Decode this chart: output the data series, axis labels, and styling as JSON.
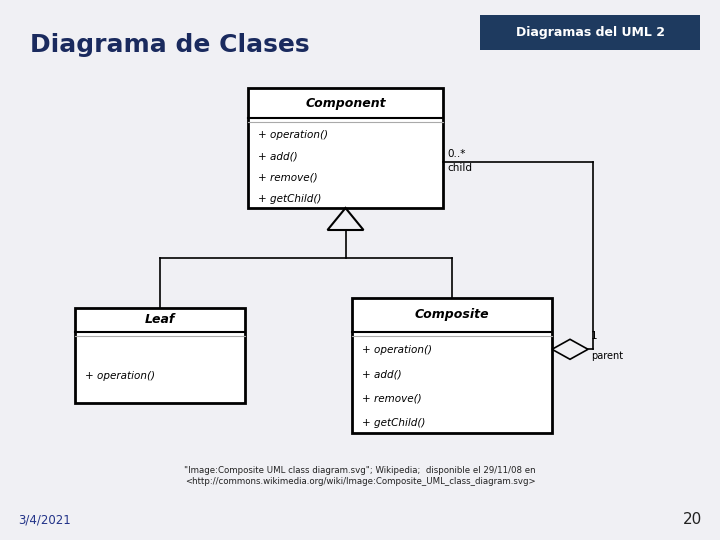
{
  "title": "Diagrama de Clases",
  "badge": "Diagramas del UML 2",
  "badge_bg": "#1e3a5f",
  "badge_text": "#ffffff",
  "bg_color": "#f0f0f4",
  "date": "3/4/2021",
  "page": "20",
  "citation": "\"Image:Composite UML class diagram.svg\"; Wikipedia;  disponible el 29/11/08 en\n<http://commons.wikimedia.org/wiki/Image:Composite_UML_class_diagram.svg>",
  "title_color": "#1a2a5e",
  "title_fontsize": 18,
  "component": {
    "name": "Component",
    "methods": [
      "+ operation()",
      "+ add()",
      "+ remove()",
      "+ getChild()"
    ]
  },
  "leaf": {
    "name": "Leaf",
    "methods": [
      "+ operation()"
    ]
  },
  "composite": {
    "name": "Composite",
    "methods": [
      "+ operation()",
      "+ add()",
      "+ remove()",
      "+ getChild()"
    ]
  }
}
